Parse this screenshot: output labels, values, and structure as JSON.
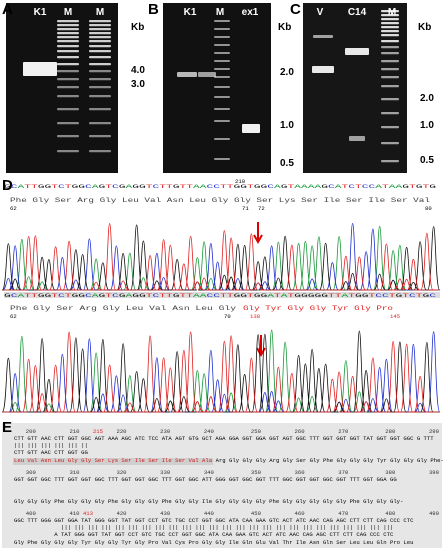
{
  "panels": {
    "a": {
      "label": "A",
      "lanes": [
        "K1",
        "M",
        "M"
      ],
      "unit": "Kb",
      "markers": [
        "4.0",
        "3.0"
      ]
    },
    "b": {
      "label": "B",
      "lanes": [
        "K1",
        "M",
        "ex1"
      ],
      "unit": "Kb",
      "markers": [
        "2.0",
        "1.0",
        "0.5"
      ]
    },
    "c": {
      "label": "C",
      "lanes": [
        "V",
        "C14",
        "M"
      ],
      "unit": "Kb",
      "markers": [
        "2.0",
        "1.0",
        "0.5"
      ]
    },
    "d": {
      "label": "D",
      "trace1": {
        "bases": "GCATTGGTCTGGCAGTCGAGGTCTTGTTAACCTTGGTGGCAGTAAAAGCATCTCCATAAGTGTG",
        "position": "210",
        "protein": "Phe Gly Ser Arg Gly Leu Val Asn Leu Gly Gly Ser Lys Ser Ile Ser Ile Ser Val",
        "numbers": [
          "62",
          "71",
          "72",
          "80"
        ]
      },
      "trace2": {
        "bases": "GCATTGGTCTGGCAGTCGAGGTCTTGTTAACCTTGGTGGATATGGGGGTTATGGTCCTGTCTGC",
        "protein_black": "Phe Gly Ser Arg Gly Leu Val Asn Leu Gly",
        "protein_red": "Gly Tyr Gly Gly Tyr Gly Pro",
        "numbers": [
          "62",
          "70"
        ],
        "numbers_red": [
          "138",
          "145"
        ]
      }
    },
    "e": {
      "label": "E",
      "rows": [
        {
          "ruler": [
            "200",
            "210",
            "215",
            "220",
            "230",
            "240",
            "250",
            "260",
            "270",
            "280",
            "290"
          ],
          "seq1": "CTT GTT AAC CTT GGT GGC AGT AAA AGC ATC TCC ATA AGT GTG GCT AGA GGA GGT GGA GGT AGT GGC TTT GGT GGT GGT TAT GGT GGT GGC G TTT",
          "match": "||| ||| ||| ||| ||| ||",
          "seq2": "CTT GTT AAC CTT GGT GG",
          "protein_red": "Leu Val Asn Leu Gly Gly Ser Lys Ser Ile Ser Ile Ser Val Ala",
          "protein": "Arg Gly Gly Gly Arg Gly Ser Gly Phe Gly Gly Gly Tyr Gly Gly Gly Phe-"
        },
        {
          "ruler": [
            "300",
            "310",
            "320",
            "330",
            "340",
            "350",
            "360",
            "370",
            "380",
            "390"
          ],
          "seq1": "GGT GGT GGC TTT GGT GGT GGC TTT GGT GGT GGC TTT GGT GGC ATT GGG GGT GGC GGT TTT GGC GGT GGT GGC GGT TTT GGT GGA GG",
          "protein": "Gly Gly Gly Phe Gly Gly Gly Phe Gly Gly Gly Phe Gly Gly Ile Gly Gly Gly Gly Phe Gly Gly Gly Gly Gly Phe Gly Gly Gly-"
        },
        {
          "ruler": [
            "400",
            "410",
            "413",
            "420",
            "430",
            "440",
            "450",
            "460",
            "470",
            "480",
            "490"
          ],
          "seq1": "GGC TTT GGG GGT GGA TAT GGG GGT TAT GGT CCT GTC TGC CCT GGT GGC ATA CAA GAA GTC ACT ATC AAC CAG AGC CTT CTT CAG CCC CTC",
          "match": "              ||| ||| ||| ||| ||| ||| ||| ||| ||| ||| ||| ||| ||| ||| ||| ||| ||| ||| ||| ||| ||| ||| ||| ||| |||",
          "seq2": "            A TAT GGG GGT TAT GGT CCT GTC TGC CCT GGT GGC ATA CAA GAA GTC ACT ATC AAC CAG AGC CTT CTT CAG CCC CTC",
          "protein": "Gly Phe Gly Gly Gly Tyr Gly Gly Tyr Gly Pro Val Cys Pro Gly Gly Ile Gln Glu Val Thr Ile Asn Gln Ser Leu Leu Gln Pro Leu"
        }
      ]
    }
  }
}
